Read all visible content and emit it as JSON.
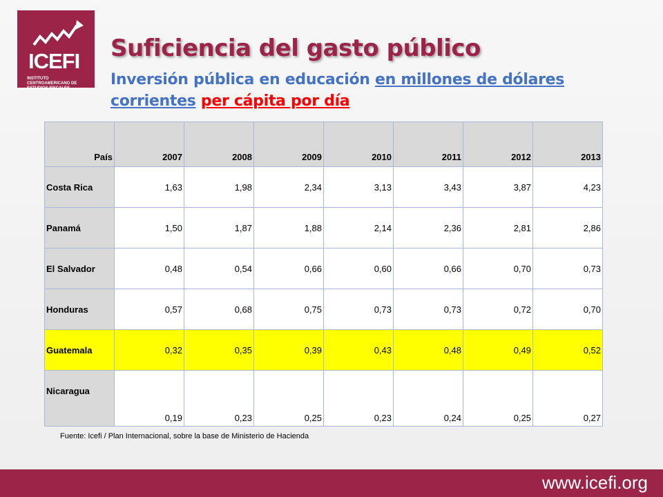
{
  "logo": {
    "name": "ICEFI",
    "subtitle": "INSTITUTO CENTROAMERICANO DE ESTUDIOS FISCALES",
    "icon": "rising-zigzag-chart-icon",
    "color": "#9b2448"
  },
  "title": "Suficiencia del gasto público",
  "subtitle": {
    "part1": "Inversión pública en educación ",
    "part2": "en millones de dólares corrientes",
    "part3": " ",
    "part4": "per cápita por día"
  },
  "table": {
    "headers": [
      "País",
      "2007",
      "2008",
      "2009",
      "2010",
      "2011",
      "2012",
      "2013"
    ],
    "rows": [
      {
        "country": "Costa Rica",
        "values": [
          "1,63",
          "1,98",
          "2,34",
          "3,13",
          "3,43",
          "3,87",
          "4,23"
        ]
      },
      {
        "country": "Panamá",
        "values": [
          "1,50",
          "1,87",
          "1,88",
          "2,14",
          "2,36",
          "2,81",
          "2,86"
        ]
      },
      {
        "country": "El Salvador",
        "values": [
          "0,48",
          "0,54",
          "0,66",
          "0,60",
          "0,66",
          "0,70",
          "0,73"
        ]
      },
      {
        "country": "Honduras",
        "values": [
          "0,57",
          "0,68",
          "0,75",
          "0,73",
          "0,73",
          "0,72",
          "0,70"
        ]
      },
      {
        "country": "Guatemala",
        "values": [
          "0,32",
          "0,35",
          "0,39",
          "0,43",
          "0,48",
          "0,49",
          "0,52"
        ],
        "highlight": true
      },
      {
        "country": "Nicaragua",
        "values": [
          "0,19",
          "0,23",
          "0,25",
          "0,23",
          "0,24",
          "0,25",
          "0,27"
        ]
      }
    ],
    "highlight_color": "#ffff00",
    "header_color": "#d9d9d9"
  },
  "source": "Fuente: Icefi / Plan Internacional, sobre la base de Ministerio de Hacienda",
  "footer": {
    "url": "www.icefi.org",
    "color": "#9b2448"
  }
}
